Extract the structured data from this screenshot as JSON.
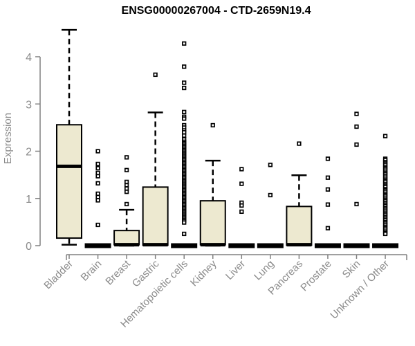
{
  "chart_data": {
    "type": "boxplot",
    "title": "ENSG00000267004 - CTD-2659N19.4",
    "ylabel": "Expression",
    "xlabel": "",
    "ylim": [
      0,
      4.6
    ],
    "yticks": [
      0,
      1,
      2,
      3,
      4
    ],
    "grid": false,
    "legend": "none",
    "colors": {
      "box_fill": "#EDE9D0",
      "box_border": "#000000",
      "median": "#000000",
      "whisker": "#000000",
      "outlier_fill": "#ffffff",
      "axis": "#808080",
      "tick_label": "#8A8A8A",
      "title": "#000000",
      "background": "#ffffff"
    },
    "categories": [
      "Bladder",
      "Brain",
      "Breast",
      "Gastric",
      "Hematopoietic cells",
      "Kidney",
      "Liver",
      "Lung",
      "Pancreas",
      "Prostate",
      "Skin",
      "Unknown / Other"
    ],
    "boxes": [
      {
        "category": "Bladder",
        "min": 0.02,
        "q1": 0.16,
        "median": 1.68,
        "q3": 2.56,
        "max": 4.57,
        "outliers": []
      },
      {
        "category": "Brain",
        "min": 0,
        "q1": 0,
        "median": 0,
        "q3": 0,
        "max": 0,
        "outliers": [
          2.0,
          1.73,
          1.64,
          1.54,
          1.47,
          1.32,
          1.1,
          1.03,
          0.96,
          0.44
        ]
      },
      {
        "category": "Breast",
        "min": 0,
        "q1": 0.02,
        "median": 0.02,
        "q3": 0.32,
        "max": 0.76,
        "outliers": [
          1.87,
          1.6,
          1.35,
          1.28,
          1.21,
          1.14,
          0.88
        ]
      },
      {
        "category": "Gastric",
        "min": 0,
        "q1": 0.01,
        "median": 0.02,
        "q3": 1.24,
        "max": 2.82,
        "outliers": [
          3.62
        ]
      },
      {
        "category": "Hematopoietic cells",
        "min": 0,
        "q1": 0,
        "median": 0,
        "q3": 0,
        "max": 0,
        "outliers": [
          4.28,
          3.79,
          3.45,
          3.34,
          2.83,
          2.73,
          2.69,
          2.55,
          2.5,
          2.44,
          2.4,
          2.33,
          2.25,
          2.2,
          2.17,
          2.14,
          2.11,
          2.08,
          2.05,
          2.02,
          1.99,
          1.96,
          1.93,
          1.9,
          1.87,
          1.84,
          1.81,
          1.78,
          1.75,
          1.72,
          1.69,
          1.66,
          1.63,
          1.6,
          1.57,
          1.54,
          1.51,
          1.48,
          1.45,
          1.42,
          1.39,
          1.36,
          1.33,
          1.3,
          1.27,
          1.24,
          1.21,
          1.18,
          1.15,
          1.12,
          1.09,
          1.06,
          1.03,
          1.0,
          0.97,
          0.94,
          0.91,
          0.88,
          0.85,
          0.82,
          0.79,
          0.76,
          0.73,
          0.7,
          0.67,
          0.64,
          0.61,
          0.58,
          0.55,
          0.52,
          0.49,
          0.25
        ]
      },
      {
        "category": "Kidney",
        "min": 0,
        "q1": 0.02,
        "median": 0.02,
        "q3": 0.95,
        "max": 1.8,
        "outliers": [
          2.55
        ]
      },
      {
        "category": "Liver",
        "min": 0,
        "q1": 0,
        "median": 0,
        "q3": 0,
        "max": 0,
        "outliers": [
          1.62,
          1.31,
          0.91,
          0.85,
          0.72
        ]
      },
      {
        "category": "Lung",
        "min": 0,
        "q1": 0,
        "median": 0,
        "q3": 0,
        "max": 0,
        "outliers": [
          1.71,
          1.07
        ]
      },
      {
        "category": "Pancreas",
        "min": 0,
        "q1": 0.01,
        "median": 0.02,
        "q3": 0.83,
        "max": 1.49,
        "outliers": [
          2.16
        ]
      },
      {
        "category": "Prostate",
        "min": 0,
        "q1": 0,
        "median": 0,
        "q3": 0,
        "max": 0,
        "outliers": [
          1.84,
          1.44,
          1.19,
          0.87,
          0.37
        ]
      },
      {
        "category": "Skin",
        "min": 0,
        "q1": 0,
        "median": 0,
        "q3": 0,
        "max": 0,
        "outliers": [
          2.79,
          2.52,
          2.14,
          0.88
        ]
      },
      {
        "category": "Unknown / Other",
        "min": 0,
        "q1": 0,
        "median": 0,
        "q3": 0,
        "max": 0,
        "outliers": [
          2.32,
          1.84,
          1.81,
          1.77,
          1.74,
          1.71,
          1.67,
          1.64,
          1.61,
          1.57,
          1.54,
          1.51,
          1.47,
          1.44,
          1.4,
          1.37,
          1.34,
          1.3,
          1.27,
          1.24,
          1.2,
          1.17,
          1.14,
          1.1,
          1.07,
          1.04,
          1.0,
          0.97,
          0.94,
          0.9,
          0.87,
          0.84,
          0.8,
          0.77,
          0.74,
          0.7,
          0.67,
          0.64,
          0.6,
          0.57,
          0.54,
          0.5,
          0.47,
          0.44,
          0.4,
          0.37,
          0.34,
          0.3,
          0.27,
          0.25
        ]
      }
    ]
  }
}
